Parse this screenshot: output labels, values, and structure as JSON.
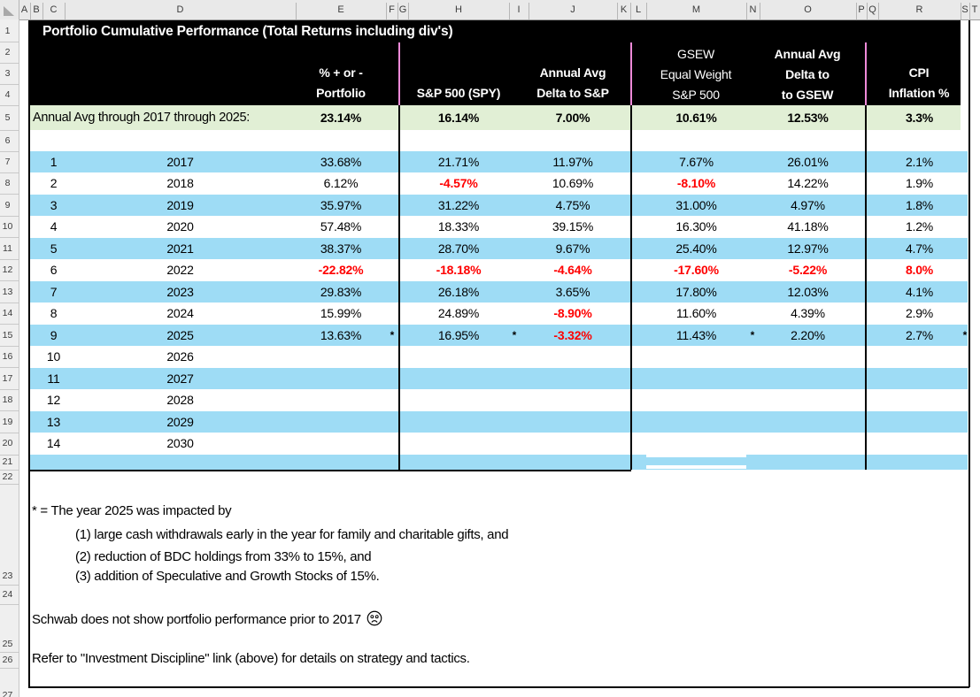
{
  "colors": {
    "header_bg": "#000000",
    "header_text": "#ffffff",
    "stripe_blue": "#9edcf5",
    "summary_green": "#e1efd5",
    "negative_red": "#ff0000",
    "separator_pink": "#ee8ad8"
  },
  "ruler": {
    "columns": [
      "A",
      "B",
      "C",
      "D",
      "E",
      "F",
      "G",
      "H",
      "I",
      "J",
      "K",
      "L",
      "M",
      "N",
      "O",
      "P",
      "Q",
      "R",
      "S",
      "T"
    ]
  },
  "gutter": {
    "rows": [
      "1",
      "2",
      "3",
      "4",
      "5",
      "6",
      "7",
      "8",
      "9",
      "10",
      "11",
      "12",
      "13",
      "14",
      "15",
      "16",
      "17",
      "18",
      "19",
      "20",
      "21",
      "22",
      "23",
      "24",
      "25",
      "26",
      "27"
    ]
  },
  "table": {
    "title": "Portfolio Cumulative Performance (Total Returns including div's)",
    "headers": {
      "portfolio": [
        "% + or -",
        "Portfolio"
      ],
      "spy": [
        "S&P 500 (SPY)"
      ],
      "delta_sp": [
        "Annual Avg",
        "Delta to S&P"
      ],
      "gsew": [
        "GSEW",
        "Equal Weight",
        "S&P 500"
      ],
      "delta_gsew": [
        "Annual Avg",
        "Delta to",
        "to GSEW"
      ],
      "cpi": [
        "CPI",
        "Inflation %"
      ]
    },
    "summary": {
      "label": "Annual Avg through 2017 through 2025:",
      "portfolio": "23.14%",
      "spy": "16.14%",
      "delta_sp": "7.00%",
      "gsew": "10.61%",
      "delta_gsew": "12.53%",
      "cpi": "3.3%"
    },
    "rows": [
      {
        "idx": "1",
        "year": "2017",
        "portfolio": "33.68%",
        "spy": "21.71%",
        "delta_sp": "11.97%",
        "gsew": "7.67%",
        "delta_gsew": "26.01%",
        "cpi": "2.1%",
        "red": [],
        "ast": false
      },
      {
        "idx": "2",
        "year": "2018",
        "portfolio": "6.12%",
        "spy": "-4.57%",
        "delta_sp": "10.69%",
        "gsew": "-8.10%",
        "delta_gsew": "14.22%",
        "cpi": "1.9%",
        "red": [
          "spy",
          "gsew"
        ],
        "ast": false
      },
      {
        "idx": "3",
        "year": "2019",
        "portfolio": "35.97%",
        "spy": "31.22%",
        "delta_sp": "4.75%",
        "gsew": "31.00%",
        "delta_gsew": "4.97%",
        "cpi": "1.8%",
        "red": [],
        "ast": false
      },
      {
        "idx": "4",
        "year": "2020",
        "portfolio": "57.48%",
        "spy": "18.33%",
        "delta_sp": "39.15%",
        "gsew": "16.30%",
        "delta_gsew": "41.18%",
        "cpi": "1.2%",
        "red": [],
        "ast": false
      },
      {
        "idx": "5",
        "year": "2021",
        "portfolio": "38.37%",
        "spy": "28.70%",
        "delta_sp": "9.67%",
        "gsew": "25.40%",
        "delta_gsew": "12.97%",
        "cpi": "4.7%",
        "red": [],
        "ast": false
      },
      {
        "idx": "6",
        "year": "2022",
        "portfolio": "-22.82%",
        "spy": "-18.18%",
        "delta_sp": "-4.64%",
        "gsew": "-17.60%",
        "delta_gsew": "-5.22%",
        "cpi": "8.0%",
        "red": [
          "portfolio",
          "spy",
          "delta_sp",
          "gsew",
          "delta_gsew",
          "cpi"
        ],
        "ast": false
      },
      {
        "idx": "7",
        "year": "2023",
        "portfolio": "29.83%",
        "spy": "26.18%",
        "delta_sp": "3.65%",
        "gsew": "17.80%",
        "delta_gsew": "12.03%",
        "cpi": "4.1%",
        "red": [],
        "ast": false
      },
      {
        "idx": "8",
        "year": "2024",
        "portfolio": "15.99%",
        "spy": "24.89%",
        "delta_sp": "-8.90%",
        "gsew": "11.60%",
        "delta_gsew": "4.39%",
        "cpi": "2.9%",
        "red": [
          "delta_sp"
        ],
        "ast": false
      },
      {
        "idx": "9",
        "year": "2025",
        "portfolio": "13.63%",
        "spy": "16.95%",
        "delta_sp": "-3.32%",
        "gsew": "11.43%",
        "delta_gsew": "2.20%",
        "cpi": "2.7%",
        "red": [
          "delta_sp"
        ],
        "ast": true
      },
      {
        "idx": "10",
        "year": "2026",
        "portfolio": "",
        "spy": "",
        "delta_sp": "",
        "gsew": "",
        "delta_gsew": "",
        "cpi": "",
        "red": [],
        "ast": false
      },
      {
        "idx": "11",
        "year": "2027",
        "portfolio": "",
        "spy": "",
        "delta_sp": "",
        "gsew": "",
        "delta_gsew": "",
        "cpi": "",
        "red": [],
        "ast": false
      },
      {
        "idx": "12",
        "year": "2028",
        "portfolio": "",
        "spy": "",
        "delta_sp": "",
        "gsew": "",
        "delta_gsew": "",
        "cpi": "",
        "red": [],
        "ast": false
      },
      {
        "idx": "13",
        "year": "2029",
        "portfolio": "",
        "spy": "",
        "delta_sp": "",
        "gsew": "",
        "delta_gsew": "",
        "cpi": "",
        "red": [],
        "ast": false
      },
      {
        "idx": "14",
        "year": "2030",
        "portfolio": "",
        "spy": "",
        "delta_sp": "",
        "gsew": "",
        "delta_gsew": "",
        "cpi": "",
        "red": [],
        "ast": false
      },
      {
        "idx": "",
        "year": "",
        "portfolio": "",
        "spy": "",
        "delta_sp": "",
        "gsew": "",
        "delta_gsew": "",
        "cpi": "",
        "red": [],
        "ast": false
      }
    ],
    "asterisk_note_symbol": "*"
  },
  "notes": {
    "lines": [
      {
        "text": "* = The year 2025 was impacted by",
        "indent": 0,
        "emoji": false
      },
      {
        "text": "(1) large cash withdrawals early in the year for family and charitable gifts, and",
        "indent": 1,
        "emoji": false
      },
      {
        "text": "(2) reduction of BDC holdings from 33% to 15%, and",
        "indent": 1,
        "emoji": false
      },
      {
        "text": "(3) addition of Speculative and Growth Stocks of 15%.",
        "indent": 1,
        "emoji": false
      },
      {
        "text": "Schwab does not show portfolio performance prior to 2017",
        "indent": 0,
        "emoji": true
      },
      {
        "text": "Refer to \"Investment Discipline\" link (above) for details on strategy and tactics.",
        "indent": 0,
        "emoji": false
      }
    ]
  }
}
